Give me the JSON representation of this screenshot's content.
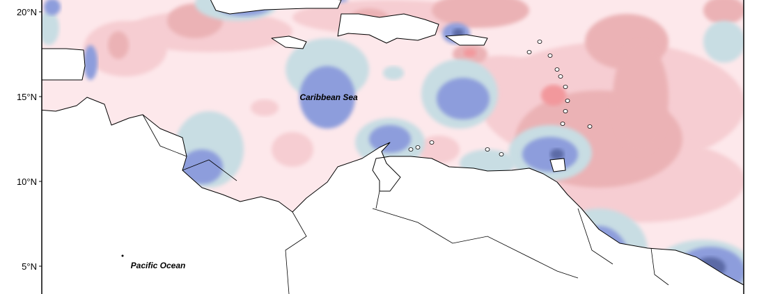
{
  "axis": {
    "latitude_labels": [
      "20°N",
      "15°N",
      "10°N",
      "5°N"
    ]
  },
  "labels": {
    "sea": "Caribbean Sea",
    "ocean": "Pacific Ocean"
  }
}
